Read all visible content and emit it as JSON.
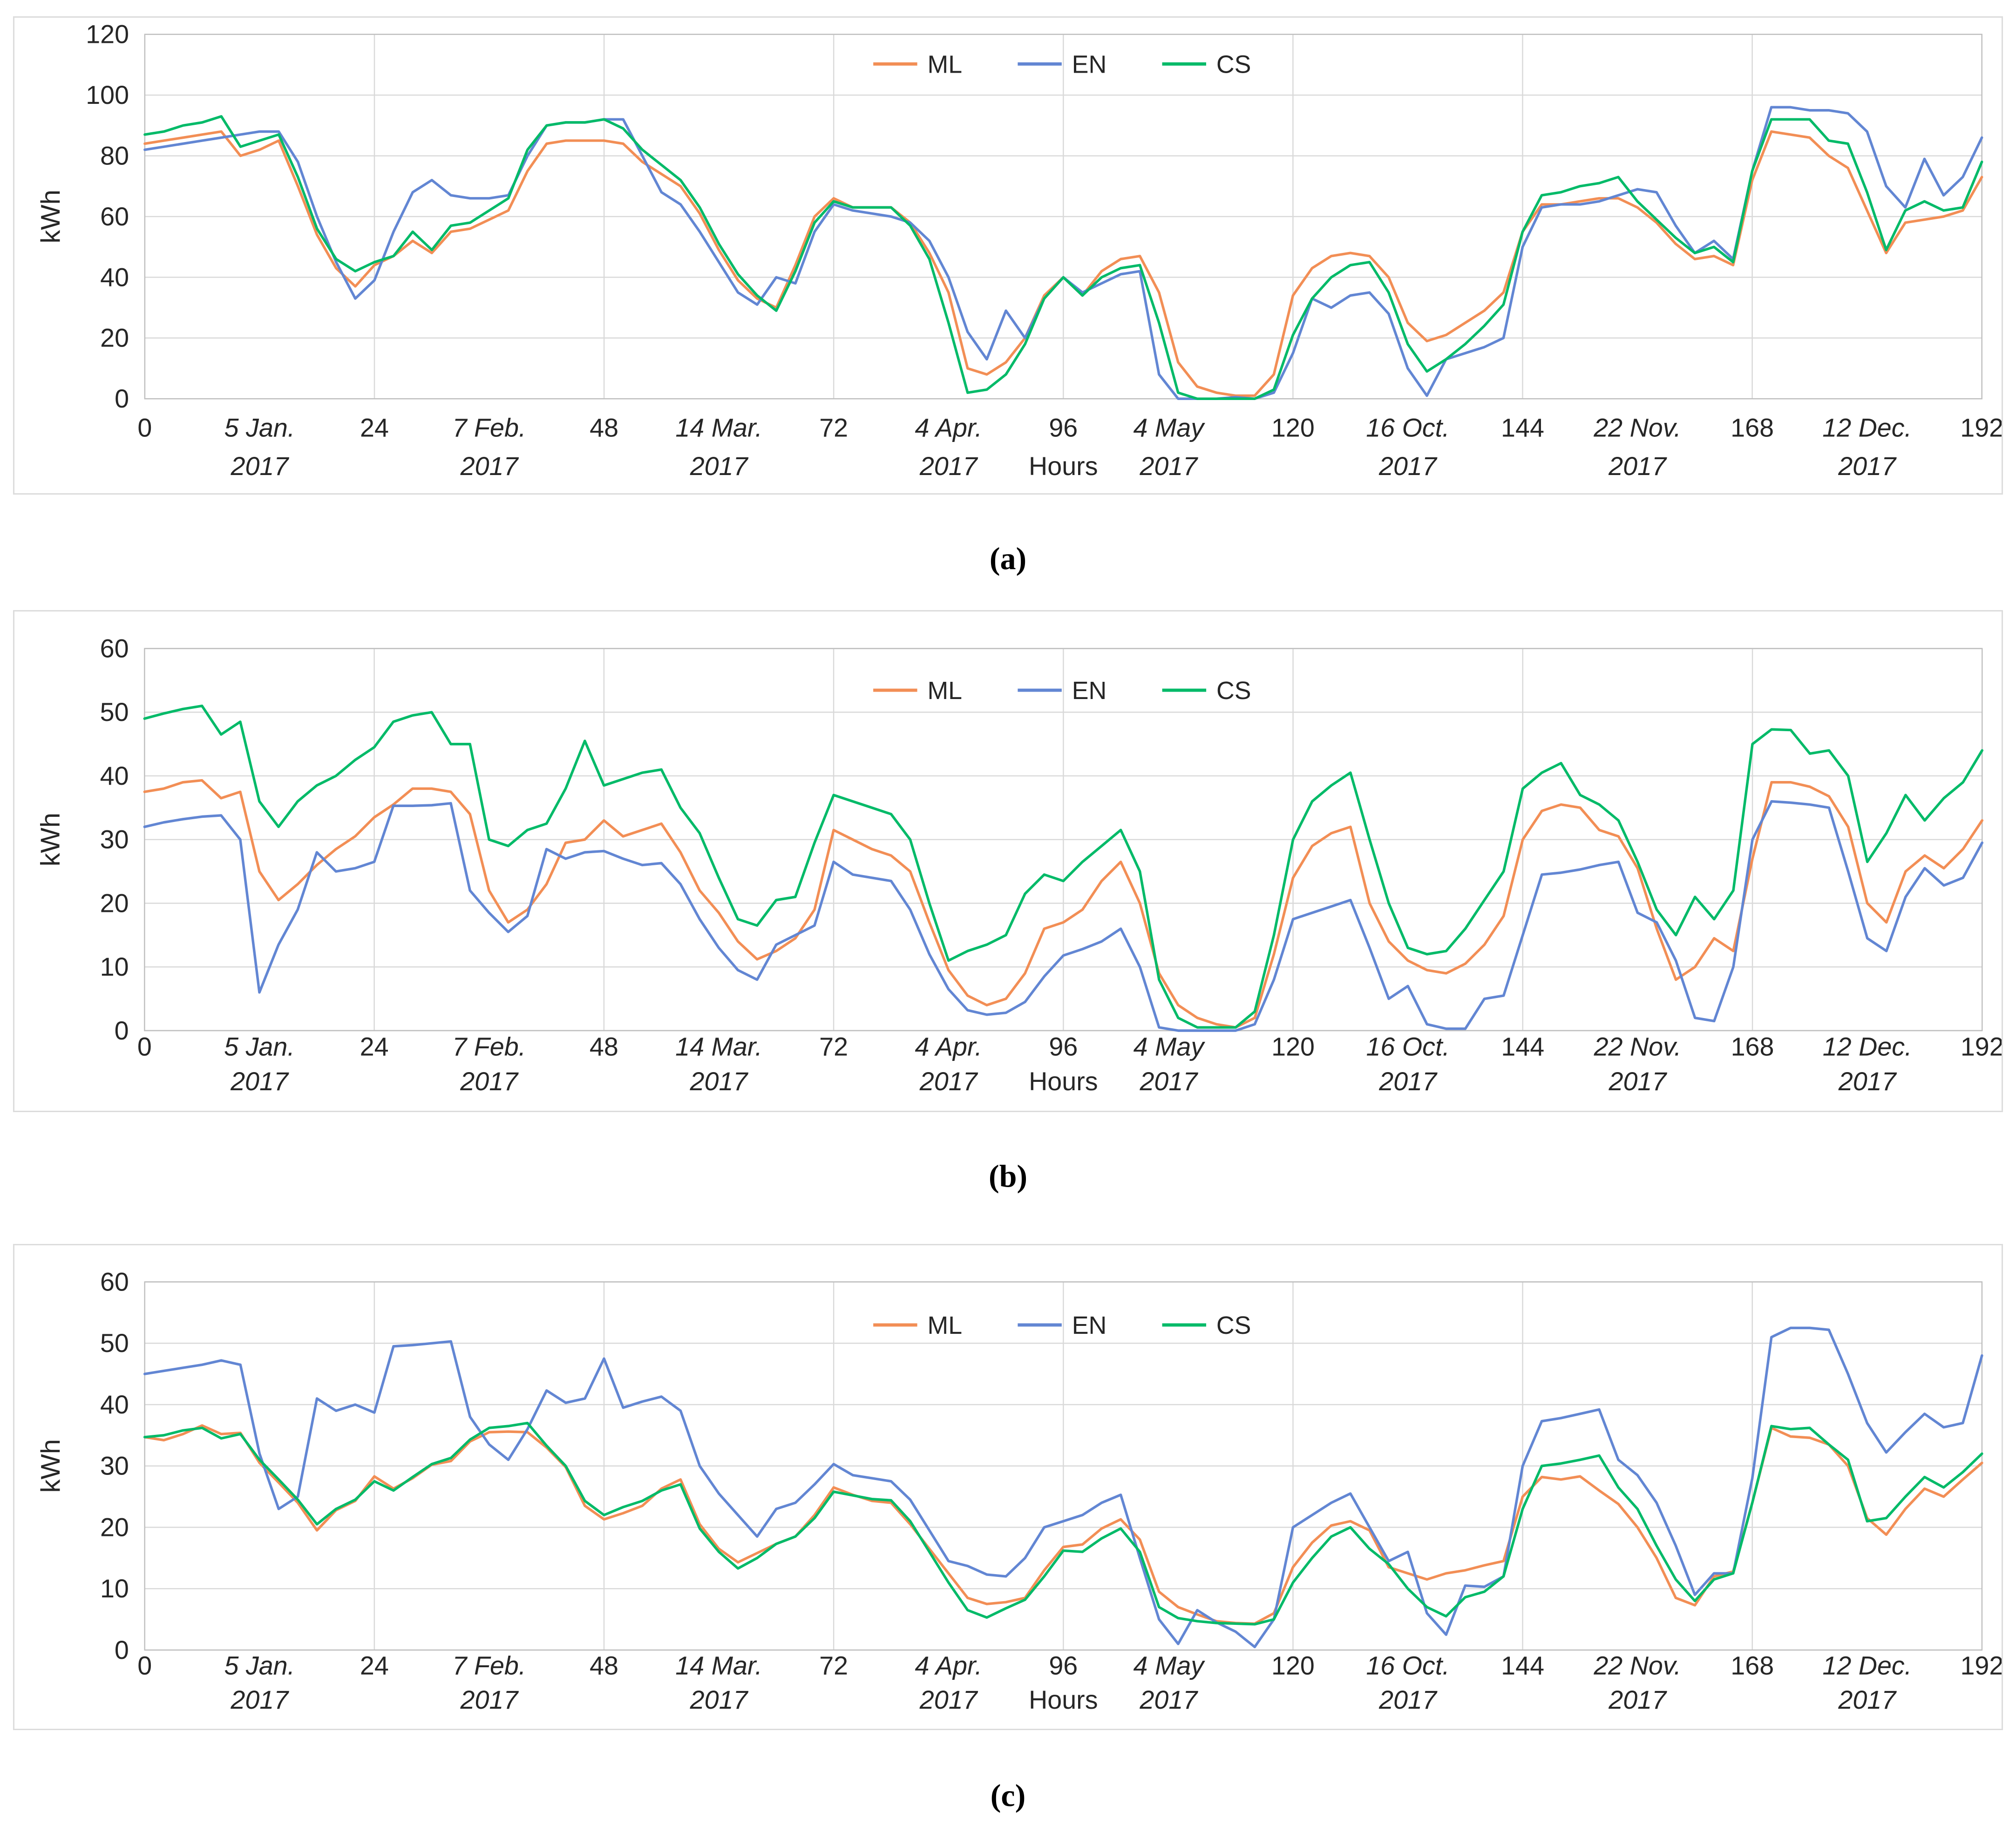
{
  "figure_title": "",
  "captions": {
    "a": "(a)",
    "b": "(b)",
    "c": "(c)"
  },
  "colors": {
    "ML": "#F28E55",
    "EN": "#6286D3",
    "CS": "#00BA68",
    "grid": "#D9D9D9",
    "frame": "#BFBFBF",
    "text": "#262626"
  },
  "legend": {
    "items": [
      "ML",
      "EN",
      "CS"
    ],
    "position": "top-center"
  },
  "axis": {
    "ylabel": "kWh",
    "hours_label": "Hours",
    "hours_label_under_tick": 96,
    "hour_ticks": [
      0,
      24,
      48,
      72,
      96,
      120,
      144,
      168,
      192
    ],
    "date_ticks": [
      {
        "hour": 12,
        "date": "5 Jan.",
        "year": "2017"
      },
      {
        "hour": 36,
        "date": "7 Feb.",
        "year": "2017"
      },
      {
        "hour": 60,
        "date": "14 Mar.",
        "year": "2017"
      },
      {
        "hour": 84,
        "date": "4 Apr.",
        "year": "2017"
      },
      {
        "hour": 107,
        "date": "4 May",
        "year": "2017"
      },
      {
        "hour": 132,
        "date": "16 Oct.",
        "year": "2017"
      },
      {
        "hour": 156,
        "date": "22 Nov.",
        "year": "2017"
      },
      {
        "hour": 180,
        "date": "12 Dec.",
        "year": "2017"
      }
    ]
  },
  "chart_data": [
    {
      "id": "a",
      "type": "line",
      "title": "(a) hourly energy, kWh",
      "ylabel": "kWh",
      "xlabel": "Hours",
      "ylim": [
        0,
        120
      ],
      "yticks": [
        0,
        20,
        40,
        60,
        80,
        100,
        120
      ],
      "xmax": 192,
      "x_start": 0,
      "x_step": 2,
      "grid": true,
      "series": [
        {
          "name": "ML",
          "values": [
            84,
            85,
            86,
            87,
            88,
            80,
            82,
            85,
            70,
            54,
            43,
            37,
            44,
            47,
            52,
            48,
            55,
            56,
            59,
            62,
            75,
            84,
            85,
            85,
            85,
            84,
            78,
            74,
            70,
            61,
            49,
            39,
            33,
            30,
            44,
            60,
            66,
            63,
            63,
            63,
            58,
            48,
            35,
            10,
            8,
            12,
            20,
            34,
            40,
            34,
            42,
            46,
            47,
            35,
            12,
            4,
            2,
            1,
            1,
            8,
            34,
            43,
            47,
            48,
            47,
            40,
            25,
            19,
            21,
            25,
            29,
            35,
            55,
            64,
            64,
            65,
            66,
            66,
            63,
            58,
            51,
            46,
            47,
            44,
            72,
            88,
            87,
            86,
            80,
            76,
            62,
            48,
            58,
            59,
            60,
            62,
            73
          ]
        },
        {
          "name": "EN",
          "values": [
            82,
            83,
            84,
            85,
            86,
            87,
            88,
            88,
            78,
            60,
            45,
            33,
            39,
            55,
            68,
            72,
            67,
            66,
            66,
            67,
            80,
            90,
            91,
            91,
            92,
            92,
            80,
            68,
            64,
            55,
            45,
            35,
            31,
            40,
            38,
            55,
            64,
            62,
            61,
            60,
            58,
            52,
            40,
            22,
            13,
            29,
            20,
            33,
            40,
            35,
            38,
            41,
            42,
            8,
            0,
            0,
            0,
            0.5,
            0,
            2,
            15,
            33,
            30,
            34,
            35,
            28,
            10,
            1,
            13,
            15,
            17,
            20,
            50,
            63,
            64,
            64,
            65,
            67,
            69,
            68,
            57,
            48,
            52,
            46,
            75,
            96,
            96,
            95,
            95,
            94,
            88,
            70,
            63,
            79,
            67,
            73,
            86
          ]
        },
        {
          "name": "CS",
          "values": [
            87,
            88,
            90,
            91,
            93,
            83,
            85,
            87,
            73,
            56,
            46,
            42,
            45,
            47,
            55,
            49,
            57,
            58,
            62,
            66,
            82,
            90,
            91,
            91,
            92,
            89,
            82,
            77,
            72,
            63,
            51,
            41,
            34,
            29,
            42,
            58,
            65,
            63,
            63,
            63,
            57,
            46,
            25,
            2,
            3,
            8,
            18,
            33,
            40,
            34,
            40,
            43,
            44,
            25,
            2,
            0,
            0,
            0,
            0,
            3,
            21,
            33,
            40,
            44,
            45,
            35,
            18,
            9,
            13,
            18,
            24,
            31,
            55,
            67,
            68,
            70,
            71,
            73,
            65,
            59,
            53,
            48,
            50,
            45,
            75,
            92,
            92,
            92,
            85,
            84,
            68,
            49,
            62,
            65,
            62,
            63,
            78
          ]
        }
      ]
    },
    {
      "id": "b",
      "type": "line",
      "title": "(b) hourly energy, kWh",
      "ylabel": "kWh",
      "xlabel": "Hours",
      "ylim": [
        0,
        60
      ],
      "yticks": [
        0,
        10,
        20,
        30,
        40,
        50,
        60
      ],
      "xmax": 192,
      "x_start": 0,
      "x_step": 2,
      "grid": true,
      "series": [
        {
          "name": "ML",
          "values": [
            37.5,
            38,
            39,
            39.3,
            36.5,
            37.5,
            25,
            20.5,
            23,
            26,
            28.5,
            30.5,
            33.5,
            35.5,
            38,
            38,
            37.5,
            34,
            22,
            17,
            19,
            23,
            29.5,
            30,
            33,
            30.5,
            31.5,
            32.5,
            28,
            22,
            18.5,
            14,
            11.2,
            12.5,
            14.5,
            19,
            31.5,
            30,
            28.5,
            27.5,
            25,
            17,
            9.5,
            5.5,
            4,
            5,
            9,
            16,
            17,
            19,
            23.5,
            26.5,
            20,
            9,
            4,
            2,
            1,
            0.5,
            2,
            12,
            24,
            29,
            31,
            32,
            20,
            14,
            11,
            9.5,
            9,
            10.5,
            13.5,
            18,
            30,
            34.5,
            35.5,
            35,
            31.5,
            30.5,
            25.5,
            16,
            8,
            10,
            14.5,
            12.5,
            27,
            39,
            39,
            38.3,
            36.8,
            32,
            20,
            17,
            25,
            27.5,
            25.5,
            28.5,
            33
          ]
        },
        {
          "name": "EN",
          "values": [
            32,
            32.7,
            33.2,
            33.6,
            33.8,
            30,
            6,
            13.5,
            19,
            28,
            25,
            25.5,
            26.5,
            35.3,
            35.3,
            35.4,
            35.7,
            22,
            18.5,
            15.5,
            18,
            28.5,
            27,
            28,
            28.2,
            27,
            26,
            26.3,
            23,
            17.5,
            13,
            9.5,
            8,
            13.5,
            15,
            16.5,
            26.5,
            24.5,
            24,
            23.5,
            19,
            12,
            6.5,
            3.2,
            2.5,
            2.8,
            4.5,
            8.5,
            11.8,
            12.8,
            14,
            16,
            10,
            0.5,
            0,
            0,
            0,
            0,
            1,
            8,
            17.5,
            18.5,
            19.5,
            20.5,
            13,
            5,
            7,
            1,
            0.3,
            0.3,
            5,
            5.5,
            15,
            24.5,
            24.8,
            25.3,
            26,
            26.5,
            18.5,
            17,
            11,
            2,
            1.5,
            10,
            30,
            36,
            35.8,
            35.5,
            35,
            25,
            14.5,
            12.5,
            21,
            25.5,
            22.8,
            24,
            29.5
          ]
        },
        {
          "name": "CS",
          "values": [
            49,
            49.8,
            50.5,
            51,
            46.5,
            48.5,
            36,
            32,
            36,
            38.5,
            40,
            42.5,
            44.5,
            48.5,
            49.5,
            50,
            45,
            45,
            30,
            29,
            31.5,
            32.5,
            38,
            45.5,
            38.5,
            39.5,
            40.5,
            41,
            35,
            31,
            24,
            17.5,
            16.5,
            20.5,
            21,
            29.5,
            37,
            36,
            35,
            34,
            30,
            20,
            11,
            12.5,
            13.5,
            15,
            21.5,
            24.5,
            23.5,
            26.5,
            29,
            31.5,
            25,
            8,
            2,
            0.5,
            0.5,
            0.5,
            3,
            15,
            30,
            36,
            38.5,
            40.5,
            30,
            20,
            13,
            12,
            12.5,
            16,
            20.5,
            25,
            38,
            40.5,
            42,
            37,
            35.5,
            33,
            26.5,
            19,
            15,
            21,
            17.5,
            22,
            45,
            47.3,
            47.2,
            43.5,
            44,
            40,
            26.5,
            31,
            37,
            33,
            36.5,
            39,
            44
          ]
        }
      ]
    },
    {
      "id": "c",
      "type": "line",
      "title": "(c) hourly energy, kWh",
      "ylabel": "kWh",
      "xlabel": "Hours",
      "ylim": [
        0,
        60
      ],
      "yticks": [
        0,
        10,
        20,
        30,
        40,
        50,
        60
      ],
      "xmax": 192,
      "x_start": 0,
      "x_step": 2,
      "grid": true,
      "series": [
        {
          "name": "ML",
          "values": [
            34.7,
            34.2,
            35.2,
            36.6,
            35.2,
            35.4,
            30.5,
            27.3,
            24,
            19.5,
            22.8,
            24.3,
            28.3,
            26.3,
            28,
            30.2,
            30.8,
            34,
            35.5,
            35.6,
            35.5,
            33,
            29.8,
            23.5,
            21.3,
            22.3,
            23.5,
            26.3,
            27.8,
            20.5,
            16.5,
            14.3,
            15.8,
            17.3,
            18.5,
            22,
            26.5,
            25.3,
            24.3,
            24,
            20.5,
            16.5,
            12.5,
            8.5,
            7.5,
            7.8,
            8.5,
            13,
            16.8,
            17.2,
            19.8,
            21.3,
            18,
            9.5,
            7,
            5.8,
            4.7,
            4.4,
            4.3,
            6,
            13.5,
            17.5,
            20.3,
            21,
            19.5,
            13.5,
            12.5,
            11.5,
            12.5,
            13,
            13.8,
            14.5,
            25,
            28.2,
            27.8,
            28.3,
            26,
            23.8,
            20,
            15,
            8.5,
            7.3,
            12,
            12.8,
            24,
            36.2,
            34.8,
            34.6,
            33.5,
            30,
            21.5,
            18.8,
            23,
            26.3,
            25,
            27.8,
            30.5
          ]
        },
        {
          "name": "EN",
          "values": [
            45,
            45.5,
            46,
            46.5,
            47.2,
            46.5,
            32,
            23,
            25,
            41,
            39,
            40,
            38.7,
            49.5,
            49.7,
            50,
            50.3,
            38,
            33.5,
            31,
            36,
            42.3,
            40.3,
            41,
            47.5,
            39.5,
            40.5,
            41.3,
            39,
            30,
            25.5,
            22,
            18.5,
            23,
            24,
            27,
            30.3,
            28.5,
            28,
            27.5,
            24.5,
            19.5,
            14.5,
            13.7,
            12.3,
            12,
            15,
            20,
            21,
            22,
            24,
            25.3,
            15,
            5,
            1,
            6.5,
            4.5,
            3,
            0.5,
            5,
            20,
            22,
            24,
            25.5,
            20,
            14.5,
            16,
            6,
            2.5,
            10.5,
            10.3,
            12,
            30,
            37.3,
            37.8,
            38.5,
            39.2,
            31,
            28.5,
            24,
            17,
            9,
            12.5,
            12.5,
            28,
            51,
            52.5,
            52.5,
            52.2,
            45,
            37,
            32.2,
            35.5,
            38.5,
            36.3,
            37,
            48
          ]
        },
        {
          "name": "CS",
          "values": [
            34.7,
            35,
            35.8,
            36.2,
            34.5,
            35.2,
            31,
            27.8,
            24.5,
            20.5,
            23,
            24.5,
            27.5,
            26,
            28.2,
            30.3,
            31.3,
            34.3,
            36.2,
            36.5,
            37,
            33.3,
            30,
            24.3,
            22,
            23.3,
            24.3,
            26,
            27,
            19.8,
            16,
            13.3,
            15,
            17.3,
            18.5,
            21.5,
            25.8,
            25.2,
            24.6,
            24.4,
            21,
            16,
            11,
            6.5,
            5.3,
            6.8,
            8.2,
            12,
            16.2,
            16,
            18.2,
            19.8,
            16,
            7,
            5.2,
            4.7,
            4.4,
            4.3,
            4.2,
            5,
            11,
            15,
            18.5,
            20,
            16.5,
            14,
            10,
            7,
            5.5,
            8.6,
            9.5,
            12,
            23,
            30,
            30.4,
            31,
            31.7,
            26.5,
            23,
            17,
            11.5,
            8,
            11.5,
            12.5,
            24,
            36.5,
            36,
            36.2,
            33.5,
            31,
            21,
            21.5,
            25,
            28.2,
            26.5,
            29,
            32
          ]
        }
      ]
    }
  ]
}
